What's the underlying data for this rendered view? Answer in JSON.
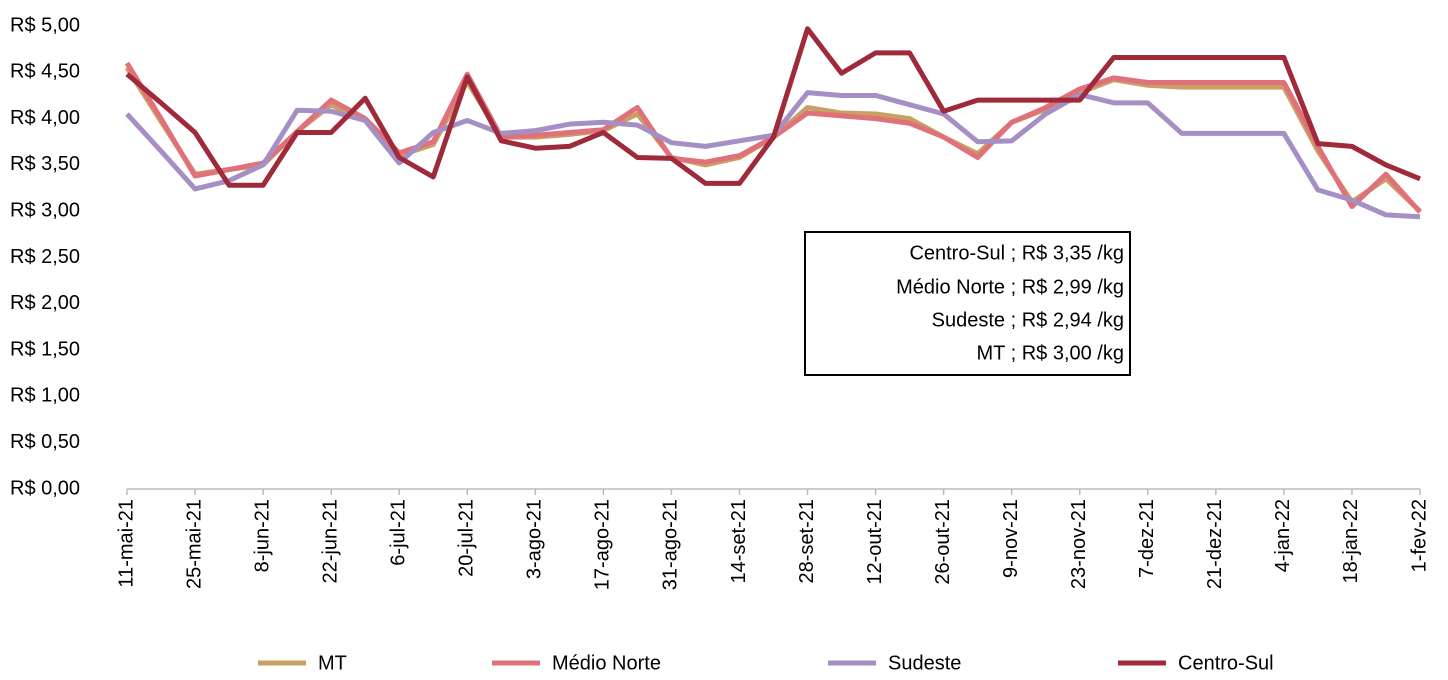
{
  "chart_data": {
    "type": "line",
    "categories": [
      "11-mai-21",
      null,
      "25-mai-21",
      null,
      "8-jun-21",
      null,
      "22-jun-21",
      null,
      "6-jul-21",
      null,
      "20-jul-21",
      null,
      "3-ago-21",
      null,
      "17-ago-21",
      null,
      "31-ago-21",
      null,
      "14-set-21",
      null,
      "28-set-21",
      null,
      "12-out-21",
      null,
      "26-out-21",
      null,
      "9-nov-21",
      null,
      "23-nov-21",
      null,
      "7-dez-21",
      null,
      "21-dez-21",
      null,
      "4-jan-22",
      null,
      "18-jan-22",
      null,
      "1-fev-22"
    ],
    "series": [
      {
        "name": "MT",
        "color": "#c8a064",
        "values": [
          4.55,
          3.97,
          3.4,
          3.45,
          3.5,
          3.86,
          4.15,
          3.98,
          3.6,
          3.72,
          4.4,
          3.8,
          3.8,
          3.83,
          3.87,
          4.05,
          3.58,
          3.5,
          3.58,
          3.8,
          4.12,
          4.06,
          4.05,
          4.0,
          3.8,
          3.62,
          3.96,
          4.1,
          4.28,
          4.42,
          4.36,
          4.34,
          4.34,
          4.34,
          4.34,
          3.65,
          3.1,
          3.35,
          3.0
        ]
      },
      {
        "name": "Médio Norte",
        "color": "#e0707a",
        "values": [
          4.6,
          4.0,
          3.38,
          3.45,
          3.52,
          3.86,
          4.2,
          4.0,
          3.63,
          3.75,
          4.48,
          3.8,
          3.82,
          3.85,
          3.88,
          4.12,
          3.57,
          3.53,
          3.6,
          3.8,
          4.06,
          4.03,
          4.0,
          3.95,
          3.8,
          3.58,
          3.96,
          4.12,
          4.32,
          4.44,
          4.39,
          4.39,
          4.39,
          4.39,
          4.39,
          3.7,
          3.05,
          3.4,
          2.99
        ]
      },
      {
        "name": "Sudeste",
        "color": "#a58fc4",
        "values": [
          4.05,
          3.65,
          3.24,
          3.33,
          3.5,
          4.09,
          4.08,
          3.98,
          3.52,
          3.85,
          3.98,
          3.84,
          3.87,
          3.94,
          3.96,
          3.93,
          3.74,
          3.7,
          3.76,
          3.82,
          4.28,
          4.25,
          4.25,
          4.15,
          4.05,
          3.75,
          3.76,
          4.05,
          4.26,
          4.17,
          4.17,
          3.84,
          3.84,
          3.84,
          3.84,
          3.23,
          3.12,
          2.96,
          2.94
        ]
      },
      {
        "name": "Centro-Sul",
        "color": "#9e2a3a",
        "values": [
          4.48,
          4.17,
          3.85,
          3.28,
          3.28,
          3.85,
          3.85,
          4.22,
          3.58,
          3.37,
          4.45,
          3.76,
          3.68,
          3.7,
          3.85,
          3.58,
          3.57,
          3.3,
          3.3,
          3.8,
          4.97,
          4.49,
          4.71,
          4.71,
          4.08,
          4.2,
          4.2,
          4.2,
          4.2,
          4.66,
          4.66,
          4.66,
          4.66,
          4.66,
          4.66,
          3.73,
          3.7,
          3.5,
          3.35
        ]
      }
    ],
    "ylim": [
      0,
      5
    ],
    "yticks": [
      {
        "value": 0,
        "label": "R$ 0,00"
      },
      {
        "value": 0.5,
        "label": "R$ 0,50"
      },
      {
        "value": 1,
        "label": "R$ 1,00"
      },
      {
        "value": 1.5,
        "label": "R$ 1,50"
      },
      {
        "value": 2,
        "label": "R$ 2,00"
      },
      {
        "value": 2.5,
        "label": "R$ 2,50"
      },
      {
        "value": 3,
        "label": "R$ 3,00"
      },
      {
        "value": 3.5,
        "label": "R$ 3,50"
      },
      {
        "value": 4,
        "label": "R$ 4,00"
      },
      {
        "value": 4.5,
        "label": "R$ 4,50"
      },
      {
        "value": 5,
        "label": "R$ 5,00"
      }
    ],
    "grid": false,
    "legend": "bottom",
    "annotation": [
      "Centro-Sul ;  R$ 3,35 /kg",
      "Médio Norte ;  R$ 2,99 /kg",
      "Sudeste ;  R$ 2,94 /kg",
      "MT ;  R$ 3,00 /kg"
    ]
  }
}
